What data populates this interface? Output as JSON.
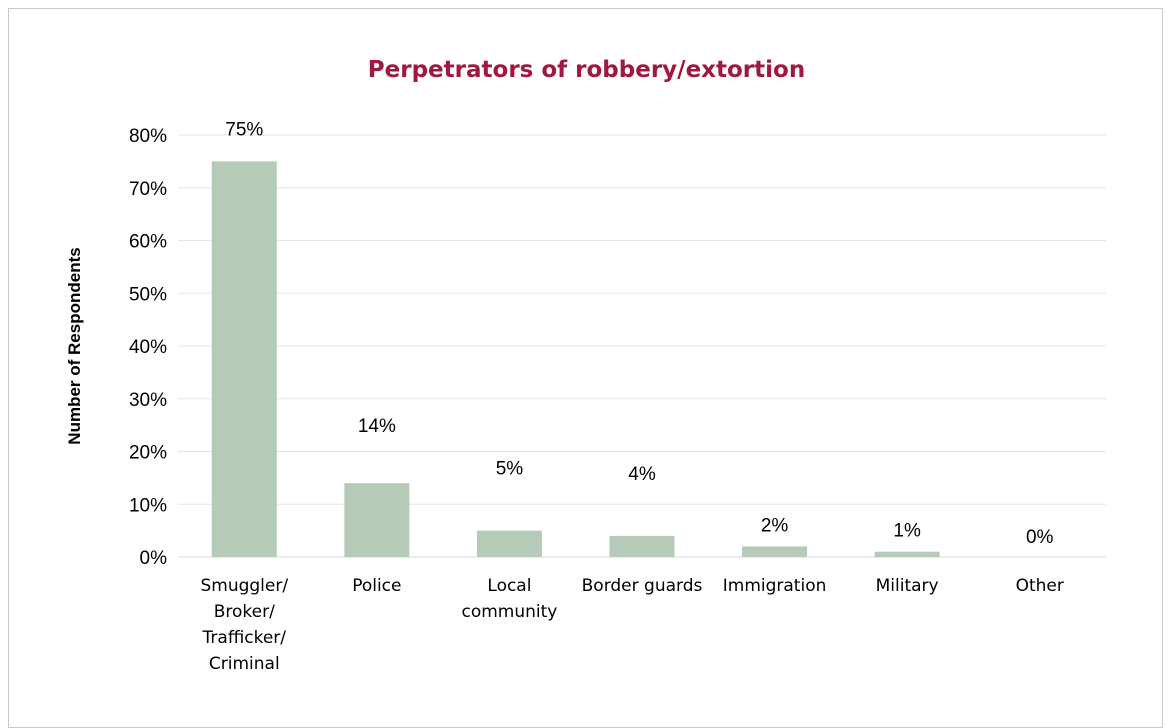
{
  "chart_data": {
    "type": "bar",
    "title": "Perpetrators of robbery/extortion",
    "ylabel": "Number of Respondents",
    "xlabel": "",
    "ylim": [
      0,
      80
    ],
    "y_ticks": [
      "0%",
      "10%",
      "20%",
      "30%",
      "40%",
      "50%",
      "60%",
      "70%",
      "80%"
    ],
    "categories": [
      [
        "Smuggler/",
        "Broker/",
        "Trafficker/",
        "Criminal"
      ],
      [
        "Police"
      ],
      [
        "Local",
        "community"
      ],
      [
        "Border guards"
      ],
      [
        "Immigration"
      ],
      [
        "Military"
      ],
      [
        "Other"
      ]
    ],
    "values": [
      75,
      14,
      5,
      4,
      2,
      1,
      0
    ],
    "data_labels": [
      "75%",
      "14%",
      "5%",
      "4%",
      "2%",
      "1%",
      "0%"
    ],
    "bar_color": "#b5cbb7",
    "grid": true,
    "legend": "none"
  }
}
